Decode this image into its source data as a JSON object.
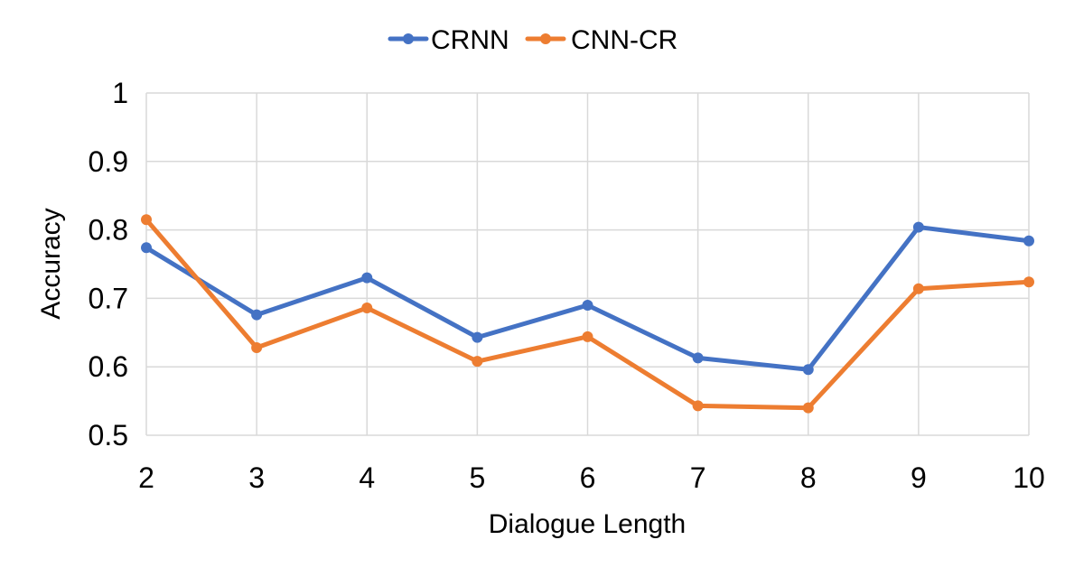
{
  "chart_data": {
    "type": "line",
    "title": "",
    "xlabel": "Dialogue Length",
    "ylabel": "Accuracy",
    "categories": [
      "2",
      "3",
      "4",
      "5",
      "6",
      "7",
      "8",
      "9",
      "10"
    ],
    "y_ticks": [
      "0.5",
      "0.6",
      "0.7",
      "0.8",
      "0.9",
      "1"
    ],
    "ylim": [
      0.5,
      1.0
    ],
    "grid": true,
    "legend_position": "top",
    "series": [
      {
        "name": "CRNN",
        "color": "#4472C4",
        "values": [
          0.774,
          0.676,
          0.73,
          0.643,
          0.69,
          0.613,
          0.596,
          0.804,
          0.784
        ]
      },
      {
        "name": "CNN-CR",
        "color": "#ED7D31",
        "values": [
          0.815,
          0.628,
          0.686,
          0.608,
          0.644,
          0.543,
          0.54,
          0.714,
          0.724
        ]
      }
    ]
  }
}
